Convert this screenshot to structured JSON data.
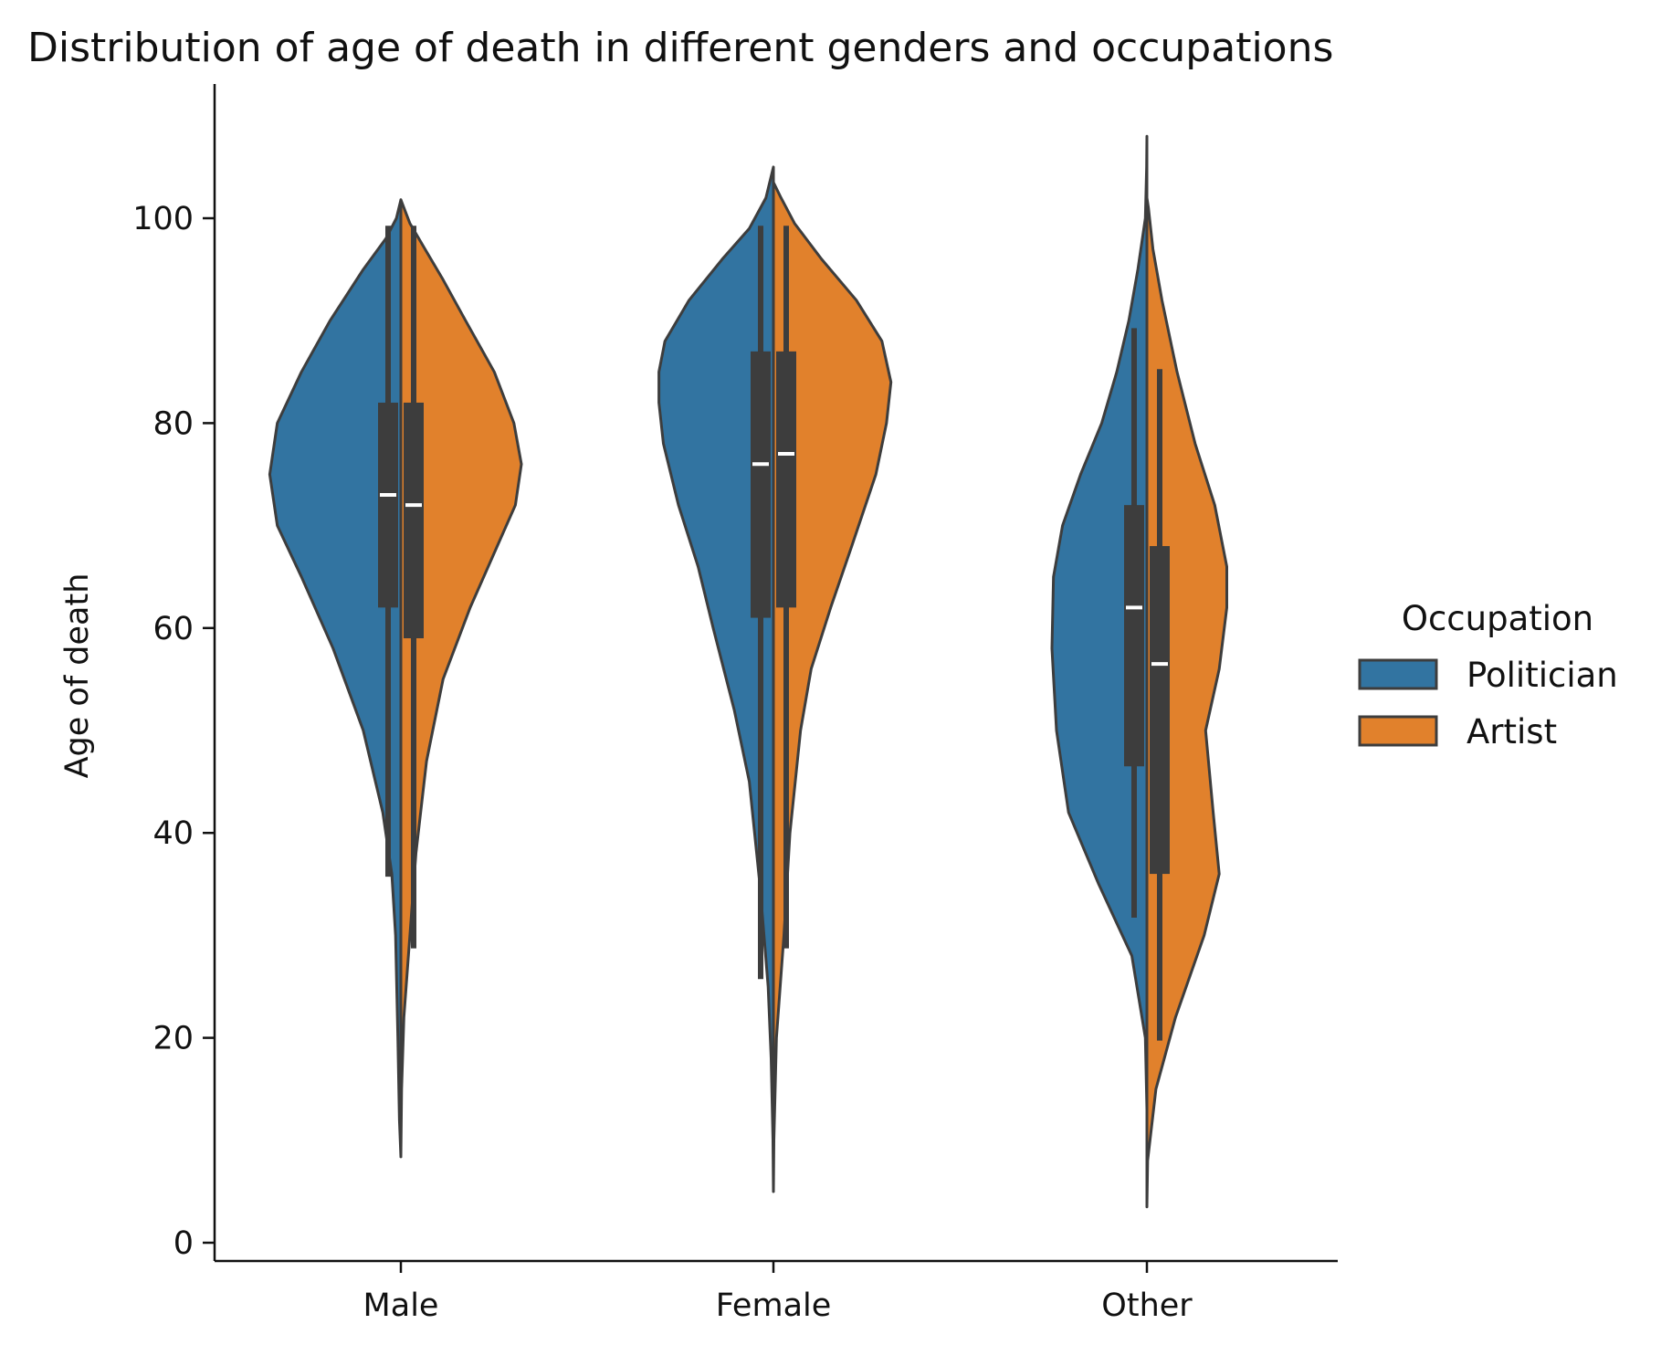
{
  "chart_data": {
    "type": "violin",
    "title": "Distribution of age of death in different genders and occupations",
    "xlabel": "",
    "ylabel": "Age of death",
    "categories": [
      "Male",
      "Female",
      "Other"
    ],
    "ylim": [
      -1.5,
      113
    ],
    "yticks": [
      0,
      20,
      40,
      60,
      80,
      100
    ],
    "legend": {
      "title": "Occupation",
      "placement": "right",
      "entries": [
        {
          "label": "Politician",
          "color": "#3274a1"
        },
        {
          "label": "Artist",
          "color": "#e1812c"
        }
      ]
    },
    "split": true,
    "series": [
      {
        "name": "Politician",
        "side": "left",
        "color": "#3274a1",
        "groups": [
          {
            "category": "Male",
            "min": 36,
            "q1": 62,
            "median": 73,
            "q3": 82,
            "max": 99,
            "density": [
              [
                8.4,
                0
              ],
              [
                12,
                0.01
              ],
              [
                20,
                0.02
              ],
              [
                30,
                0.035
              ],
              [
                36,
                0.06
              ],
              [
                42,
                0.12
              ],
              [
                50,
                0.25
              ],
              [
                58,
                0.45
              ],
              [
                65,
                0.66
              ],
              [
                70,
                0.82
              ],
              [
                75,
                0.87
              ],
              [
                80,
                0.82
              ],
              [
                85,
                0.66
              ],
              [
                90,
                0.47
              ],
              [
                95,
                0.25
              ],
              [
                98,
                0.1
              ],
              [
                100,
                0.03
              ],
              [
                101.8,
                0
              ]
            ]
          },
          {
            "category": "Female",
            "min": 26,
            "q1": 61,
            "median": 76,
            "q3": 87,
            "max": 99,
            "density": [
              [
                5,
                0
              ],
              [
                10,
                0.003
              ],
              [
                18,
                0.015
              ],
              [
                25,
                0.035
              ],
              [
                35,
                0.09
              ],
              [
                45,
                0.16
              ],
              [
                52,
                0.26
              ],
              [
                60,
                0.4
              ],
              [
                66,
                0.5
              ],
              [
                72,
                0.63
              ],
              [
                78,
                0.73
              ],
              [
                82,
                0.76
              ],
              [
                85,
                0.76
              ],
              [
                88,
                0.72
              ],
              [
                92,
                0.56
              ],
              [
                96,
                0.34
              ],
              [
                99,
                0.16
              ],
              [
                102,
                0.05
              ],
              [
                105,
                0
              ]
            ]
          },
          {
            "category": "Other",
            "min": 32,
            "q1": 46.5,
            "median": 62,
            "q3": 72,
            "max": 89,
            "density": [
              [
                13,
                0
              ],
              [
                20,
                0.01
              ],
              [
                28,
                0.1
              ],
              [
                35,
                0.32
              ],
              [
                42,
                0.52
              ],
              [
                50,
                0.6
              ],
              [
                58,
                0.63
              ],
              [
                65,
                0.62
              ],
              [
                70,
                0.56
              ],
              [
                75,
                0.44
              ],
              [
                80,
                0.3
              ],
              [
                85,
                0.2
              ],
              [
                90,
                0.12
              ],
              [
                95,
                0.06
              ],
              [
                100,
                0.01
              ],
              [
                105,
                0.002
              ],
              [
                108,
                0
              ]
            ]
          }
        ]
      },
      {
        "name": "Artist",
        "side": "right",
        "color": "#e1812c",
        "groups": [
          {
            "category": "Male",
            "min": 29,
            "q1": 59,
            "median": 72,
            "q3": 82,
            "max": 99,
            "density": [
              [
                8.4,
                0
              ],
              [
                15,
                0.005
              ],
              [
                22,
                0.02
              ],
              [
                30,
                0.06
              ],
              [
                38,
                0.1
              ],
              [
                47,
                0.17
              ],
              [
                55,
                0.28
              ],
              [
                62,
                0.46
              ],
              [
                68,
                0.64
              ],
              [
                72,
                0.76
              ],
              [
                76,
                0.8
              ],
              [
                80,
                0.75
              ],
              [
                85,
                0.62
              ],
              [
                90,
                0.43
              ],
              [
                94,
                0.28
              ],
              [
                97,
                0.16
              ],
              [
                99.5,
                0.06
              ],
              [
                101.8,
                0
              ]
            ]
          },
          {
            "category": "Female",
            "min": 29,
            "q1": 62,
            "median": 77,
            "q3": 87,
            "max": 99,
            "density": [
              [
                5,
                0
              ],
              [
                10,
                0.003
              ],
              [
                20,
                0.02
              ],
              [
                30,
                0.07
              ],
              [
                40,
                0.11
              ],
              [
                50,
                0.18
              ],
              [
                56,
                0.25
              ],
              [
                62,
                0.38
              ],
              [
                68,
                0.52
              ],
              [
                75,
                0.68
              ],
              [
                80,
                0.75
              ],
              [
                84,
                0.78
              ],
              [
                88,
                0.72
              ],
              [
                92,
                0.55
              ],
              [
                96,
                0.32
              ],
              [
                99.5,
                0.14
              ],
              [
                102,
                0.05
              ],
              [
                103.5,
                0
              ]
            ]
          },
          {
            "category": "Other",
            "min": 20,
            "q1": 36,
            "median": 56.5,
            "q3": 68,
            "max": 85,
            "density": [
              [
                3.5,
                0
              ],
              [
                8,
                0.005
              ],
              [
                15,
                0.06
              ],
              [
                22,
                0.19
              ],
              [
                30,
                0.38
              ],
              [
                36,
                0.48
              ],
              [
                42,
                0.44
              ],
              [
                50,
                0.39
              ],
              [
                56,
                0.48
              ],
              [
                62,
                0.53
              ],
              [
                66,
                0.53
              ],
              [
                72,
                0.45
              ],
              [
                78,
                0.32
              ],
              [
                85,
                0.2
              ],
              [
                92,
                0.1
              ],
              [
                97,
                0.04
              ],
              [
                101,
                0.01
              ],
              [
                102,
                0
              ]
            ]
          }
        ]
      }
    ]
  }
}
